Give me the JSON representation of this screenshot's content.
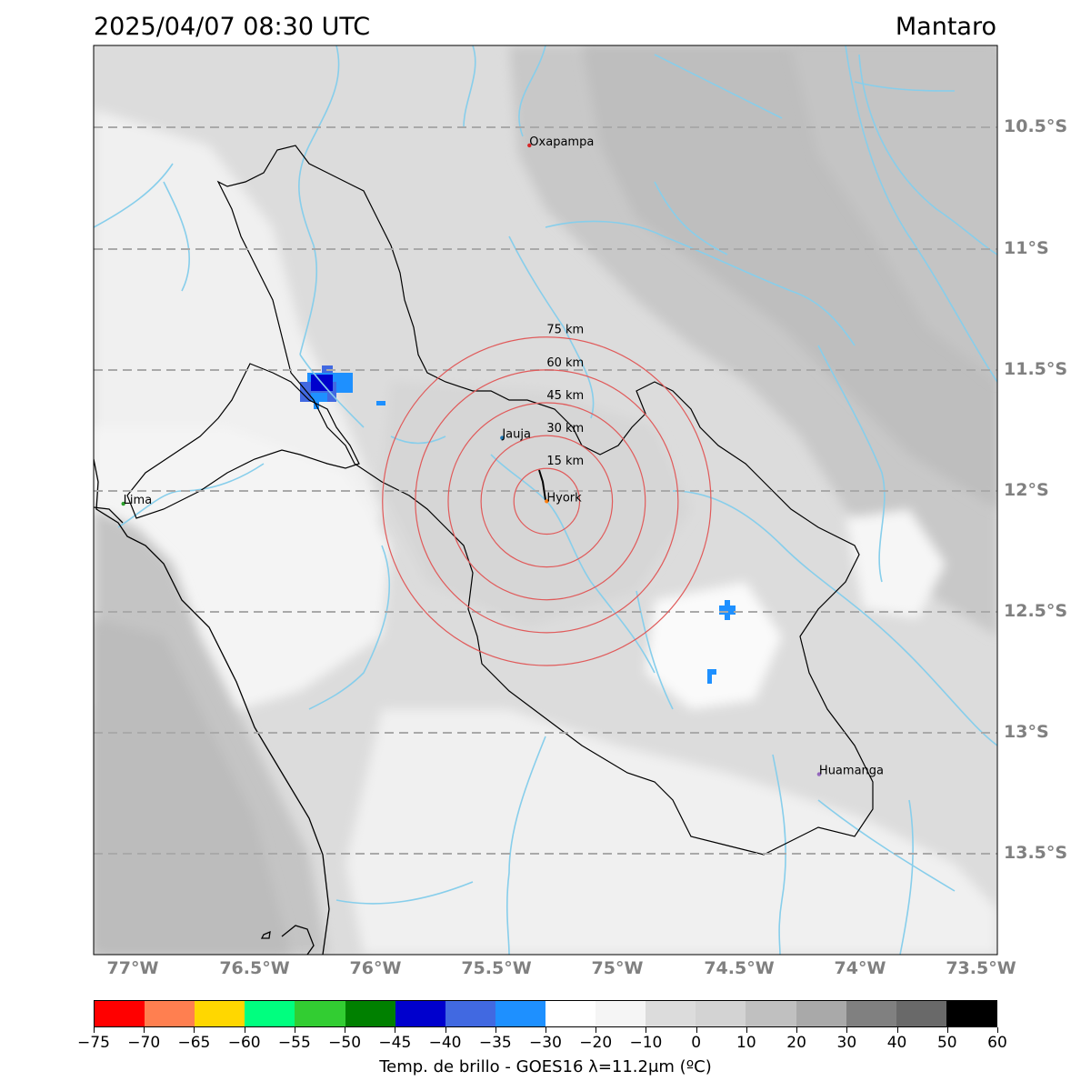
{
  "header": {
    "datetime": "2025/04/07 08:30 UTC",
    "region": "Mantaro"
  },
  "map": {
    "extent": {
      "lon": [
        -77.15,
        -73.5
      ],
      "lat": [
        -13.9,
        -10.17
      ]
    },
    "lat_gridlines": [
      -10.5,
      -11.0,
      -11.5,
      -12.0,
      -12.5,
      -13.0,
      -13.5
    ],
    "lat_labels": [
      "10.5°S",
      "11°S",
      "11.5°S",
      "12°S",
      "12.5°S",
      "13°S",
      "13.5°S"
    ],
    "lon_ticks": [
      -77.0,
      -76.5,
      -76.0,
      -75.5,
      -75.0,
      -74.5,
      -74.0,
      -73.5
    ],
    "lon_labels": [
      "77°W",
      "76.5°W",
      "76°W",
      "75.5°W",
      "75°W",
      "74.5°W",
      "74°W",
      "73.5°W"
    ],
    "cities": [
      {
        "name": "Oxapampa",
        "lon": -75.39,
        "lat": -10.58,
        "color": "#d62728"
      },
      {
        "name": "Jauja",
        "lon": -75.5,
        "lat": -11.78,
        "color": "#1f77b4"
      },
      {
        "name": "Hyork",
        "lon": -75.32,
        "lat": -12.04,
        "color": "#ff7f0e"
      },
      {
        "name": "Lima",
        "lon": -77.03,
        "lat": -12.05,
        "color": "#2ca02c"
      },
      {
        "name": "Huamanga",
        "lon": -74.22,
        "lat": -13.16,
        "color": "#9467bd"
      }
    ],
    "radar_center": {
      "lon": -75.32,
      "lat": -12.04
    },
    "range_rings": [
      {
        "km": 15,
        "label": "15 km"
      },
      {
        "km": 30,
        "label": "30 km"
      },
      {
        "km": 45,
        "label": "45 km"
      },
      {
        "km": 60,
        "label": "60 km"
      },
      {
        "km": 75,
        "label": "75 km"
      }
    ],
    "ring_color": "#e05a5a",
    "river_color": "#87ceeb",
    "colors": {
      "land_bright": "#f4f4f4",
      "land_light": "#dcdcdc",
      "land_mid": "#cdcdcd",
      "land_dark": "#bebebe",
      "cold_cloud_blue": "#1e90ff",
      "cold_cloud_royal": "#4169e1",
      "cold_cloud_deep": "#0000cd"
    }
  },
  "colorbar": {
    "title": "Temp. de brillo - GOES16 λ=11.2μm (ºC)",
    "ticks": [
      "−75",
      "−70",
      "−65",
      "−60",
      "−55",
      "−50",
      "−45",
      "−40",
      "−35",
      "−30",
      "−20",
      "−10",
      "0",
      "10",
      "20",
      "30",
      "40",
      "50",
      "60"
    ],
    "colors": [
      "#ff0000",
      "#ff7f50",
      "#ffd700",
      "#00ff7f",
      "#32cd32",
      "#008000",
      "#0000cd",
      "#4169e1",
      "#1e90ff",
      "#ffffff",
      "#f5f5f5",
      "#dcdcdc",
      "#d3d3d3",
      "#c0c0c0",
      "#a9a9a9",
      "#808080",
      "#696969",
      "#000000"
    ]
  }
}
